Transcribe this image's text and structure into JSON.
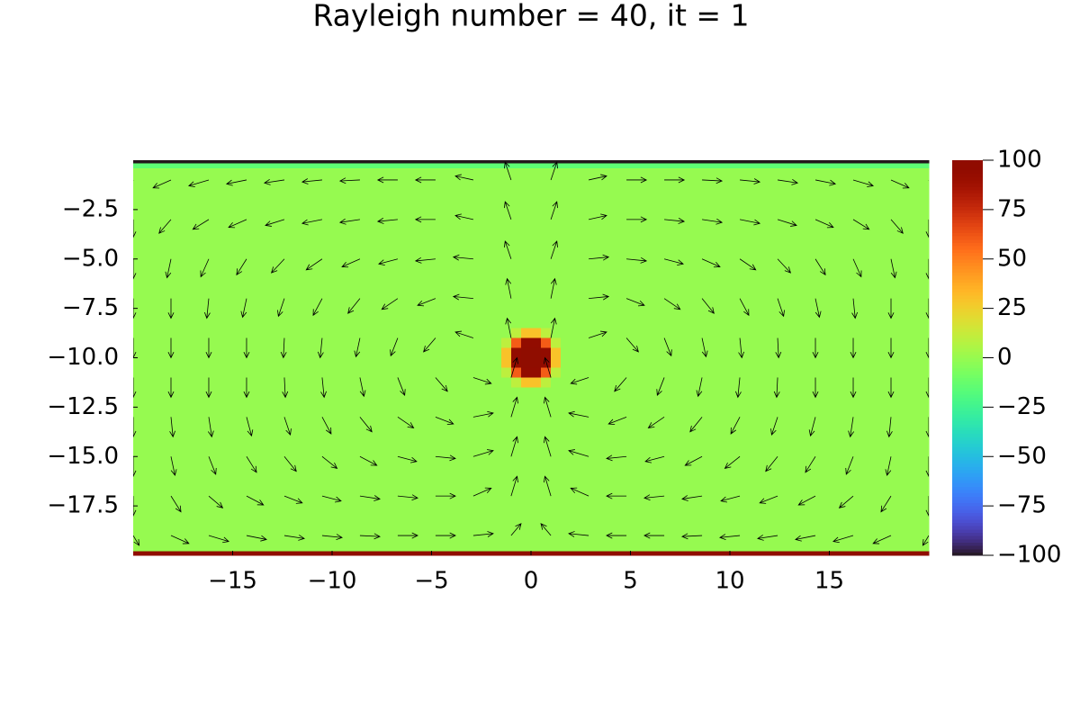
{
  "chart_data": {
    "type": "heatmap",
    "title": "Rayleigh number = 40, it = 1",
    "xlim": [
      -20,
      20
    ],
    "ylim": [
      -20,
      0
    ],
    "xticks": [
      {
        "value": -15,
        "label": "−15"
      },
      {
        "value": -10,
        "label": "−10"
      },
      {
        "value": -5,
        "label": "−5"
      },
      0,
      5,
      10,
      15
    ],
    "yticks": [
      {
        "value": -2.5,
        "label": "−2.5"
      },
      {
        "value": -5,
        "label": "−5.0"
      },
      {
        "value": -7.5,
        "label": "−7.5"
      },
      {
        "value": -10,
        "label": "−10.0"
      },
      {
        "value": -12.5,
        "label": "−12.5"
      },
      {
        "value": -15,
        "label": "−15.0"
      },
      {
        "value": -17.5,
        "label": "−17.5"
      }
    ],
    "colormap": "turbo",
    "clim": [
      -100,
      100
    ],
    "colorbar_ticks": [
      {
        "value": 100,
        "label": "100"
      },
      {
        "value": 75,
        "label": "75"
      },
      {
        "value": 50,
        "label": "50"
      },
      {
        "value": 25,
        "label": "25"
      },
      {
        "value": 0,
        "label": "0"
      },
      {
        "value": -25,
        "label": "−25"
      },
      {
        "value": -50,
        "label": "−50"
      },
      {
        "value": -75,
        "label": "−75"
      },
      {
        "value": -100,
        "label": "−100"
      }
    ],
    "x_edges": [
      -20,
      -1.5,
      -1,
      -0.5,
      0,
      0.5,
      1,
      1.5,
      20
    ],
    "y_edges": [
      0,
      -0.15,
      -0.4,
      -8.5,
      -9,
      -9.5,
      -10,
      -10.5,
      -11,
      -11.5,
      -19.8,
      -20
    ],
    "z": [
      [
        -100,
        -100,
        -100,
        -100,
        -100,
        -100,
        -100,
        -100
      ],
      [
        -15,
        -15,
        -15,
        -15,
        -15,
        -15,
        -15,
        -15
      ],
      [
        0,
        0,
        0,
        0,
        0,
        0,
        0,
        0
      ],
      [
        0,
        0,
        10,
        30,
        30,
        10,
        0,
        0
      ],
      [
        0,
        10,
        60,
        95,
        95,
        60,
        10,
        0
      ],
      [
        0,
        30,
        95,
        100,
        100,
        95,
        30,
        0
      ],
      [
        0,
        30,
        95,
        100,
        100,
        95,
        30,
        0
      ],
      [
        0,
        10,
        60,
        95,
        95,
        60,
        10,
        0
      ],
      [
        0,
        0,
        10,
        30,
        30,
        10,
        0,
        0
      ],
      [
        0,
        0,
        0,
        0,
        0,
        0,
        0,
        0
      ],
      [
        100,
        100,
        100,
        100,
        100,
        100,
        100,
        100
      ]
    ],
    "quiver": {
      "color": "#000000",
      "x": [
        -20,
        -18.1,
        -16.2,
        -14.3,
        -12.4,
        -10.5,
        -8.6,
        -6.7,
        -4.8,
        -2.9,
        -1,
        1,
        2.9,
        4.8,
        6.7,
        8.6,
        10.5,
        12.4,
        14.3,
        16.2,
        18.1,
        20
      ],
      "y": [
        -1,
        -3,
        -5,
        -7,
        -9,
        -11,
        -13,
        -15,
        -17,
        -19
      ],
      "u": [
        [
          -0.3,
          -0.9,
          -1,
          -1,
          -1,
          -1,
          -1,
          -1,
          -1,
          -0.9,
          -0.3,
          0.3,
          0.9,
          1,
          1,
          1,
          1,
          1,
          1,
          1,
          0.9,
          0.3
        ],
        [
          0,
          -0.6,
          -0.8,
          -0.9,
          -0.95,
          -1,
          -1,
          -1,
          -1,
          -0.9,
          -0.3,
          0.3,
          0.9,
          1,
          1,
          1,
          1,
          0.95,
          0.9,
          0.8,
          0.6,
          0
        ],
        [
          0,
          -0.2,
          -0.4,
          -0.5,
          -0.65,
          -0.8,
          -0.9,
          -0.95,
          -1,
          -1,
          -0.3,
          0.3,
          1,
          1,
          0.95,
          0.9,
          0.8,
          0.65,
          0.5,
          0.4,
          0.2,
          0
        ],
        [
          0,
          0,
          -0.1,
          -0.2,
          -0.3,
          -0.45,
          -0.6,
          -0.8,
          -0.9,
          -1,
          -0.2,
          0.2,
          1,
          0.9,
          0.8,
          0.6,
          0.45,
          0.3,
          0.2,
          0.1,
          0,
          0
        ],
        [
          0,
          0,
          0,
          0,
          -0.05,
          -0.1,
          -0.2,
          -0.35,
          -0.6,
          -0.9,
          -0.2,
          0.2,
          0.9,
          0.6,
          0.35,
          0.2,
          0.1,
          0.05,
          0,
          0,
          0,
          0
        ],
        [
          0,
          0,
          0,
          0,
          0.05,
          0.1,
          0.2,
          0.35,
          0.6,
          0.9,
          0.3,
          -0.3,
          -0.9,
          -0.6,
          -0.35,
          -0.2,
          -0.1,
          -0.05,
          0,
          0,
          0,
          0
        ],
        [
          0,
          0.1,
          0.15,
          0.25,
          0.3,
          0.45,
          0.6,
          0.8,
          0.9,
          1,
          0.3,
          -0.3,
          -1,
          -0.9,
          -0.8,
          -0.6,
          -0.45,
          -0.3,
          -0.25,
          -0.15,
          -0.1,
          0
        ],
        [
          0,
          0.2,
          0.35,
          0.5,
          0.6,
          0.75,
          0.85,
          0.95,
          1,
          1,
          0.3,
          -0.3,
          -1,
          -1,
          -0.95,
          -0.85,
          -0.75,
          -0.6,
          -0.5,
          -0.35,
          -0.2,
          0
        ],
        [
          0,
          0.5,
          0.7,
          0.85,
          0.9,
          0.95,
          1,
          1,
          1,
          0.9,
          0.3,
          -0.3,
          -0.9,
          -1,
          -1,
          -1,
          -0.95,
          -0.9,
          -0.85,
          -0.7,
          -0.5,
          0
        ],
        [
          0.3,
          0.9,
          1,
          1,
          1,
          1,
          1,
          1,
          1,
          1,
          0.5,
          -0.5,
          -1,
          -1,
          -1,
          -1,
          -1,
          -1,
          -1,
          -1,
          -0.9,
          -0.3
        ]
      ],
      "v": [
        [
          -0.6,
          -0.4,
          -0.3,
          -0.2,
          -0.15,
          -0.1,
          -0.05,
          0,
          0,
          0.2,
          0.9,
          0.9,
          0.2,
          0,
          0,
          -0.05,
          -0.1,
          -0.15,
          -0.2,
          -0.3,
          -0.4,
          -0.6
        ],
        [
          -0.9,
          -0.7,
          -0.5,
          -0.4,
          -0.3,
          -0.2,
          -0.15,
          -0.1,
          0,
          0.2,
          0.9,
          0.9,
          0.2,
          0,
          -0.1,
          -0.15,
          -0.2,
          -0.3,
          -0.4,
          -0.5,
          -0.7,
          -0.9
        ],
        [
          -1,
          -0.95,
          -0.9,
          -0.8,
          -0.7,
          -0.55,
          -0.4,
          -0.25,
          -0.1,
          0.1,
          0.9,
          0.9,
          0.1,
          -0.1,
          -0.25,
          -0.4,
          -0.55,
          -0.7,
          -0.8,
          -0.9,
          -0.95,
          -1
        ],
        [
          -1,
          -1,
          -1,
          -0.95,
          -0.9,
          -0.85,
          -0.75,
          -0.55,
          -0.35,
          0.1,
          1,
          1,
          0.1,
          -0.35,
          -0.55,
          -0.75,
          -0.85,
          -0.9,
          -0.95,
          -1,
          -1,
          -1
        ],
        [
          -1,
          -1,
          -1,
          -1,
          -1,
          -1,
          -0.95,
          -0.9,
          -0.7,
          0.3,
          1,
          1,
          0.3,
          -0.7,
          -0.9,
          -0.95,
          -1,
          -1,
          -1,
          -1,
          -1,
          -1
        ],
        [
          -1,
          -1,
          -1,
          -1,
          -1,
          -1,
          -0.95,
          -0.9,
          -0.7,
          -0.3,
          1,
          1,
          -0.3,
          -0.7,
          -0.9,
          -0.95,
          -1,
          -1,
          -1,
          -1,
          -1,
          -1
        ],
        [
          -1,
          -1,
          -1,
          -0.95,
          -0.9,
          -0.85,
          -0.75,
          -0.55,
          -0.35,
          0.2,
          1,
          1,
          0.2,
          -0.35,
          -0.55,
          -0.75,
          -0.85,
          -0.9,
          -0.95,
          -1,
          -1,
          -1
        ],
        [
          -1,
          -0.95,
          -0.9,
          -0.8,
          -0.75,
          -0.6,
          -0.45,
          -0.25,
          -0.1,
          0.3,
          1,
          1,
          0.3,
          -0.1,
          -0.25,
          -0.45,
          -0.6,
          -0.75,
          -0.8,
          -0.9,
          -0.95,
          -1
        ],
        [
          -1,
          -0.8,
          -0.6,
          -0.45,
          -0.35,
          -0.25,
          -0.15,
          -0.1,
          0,
          0.4,
          1,
          1,
          0.4,
          0,
          -0.1,
          -0.15,
          -0.25,
          -0.35,
          -0.45,
          -0.6,
          -0.8,
          -1
        ],
        [
          -0.5,
          -0.4,
          -0.3,
          -0.2,
          -0.15,
          -0.1,
          -0.05,
          0,
          0,
          0.1,
          0.6,
          0.6,
          0.1,
          0,
          0,
          -0.05,
          -0.1,
          -0.15,
          -0.2,
          -0.3,
          -0.4,
          -0.5
        ]
      ]
    }
  }
}
